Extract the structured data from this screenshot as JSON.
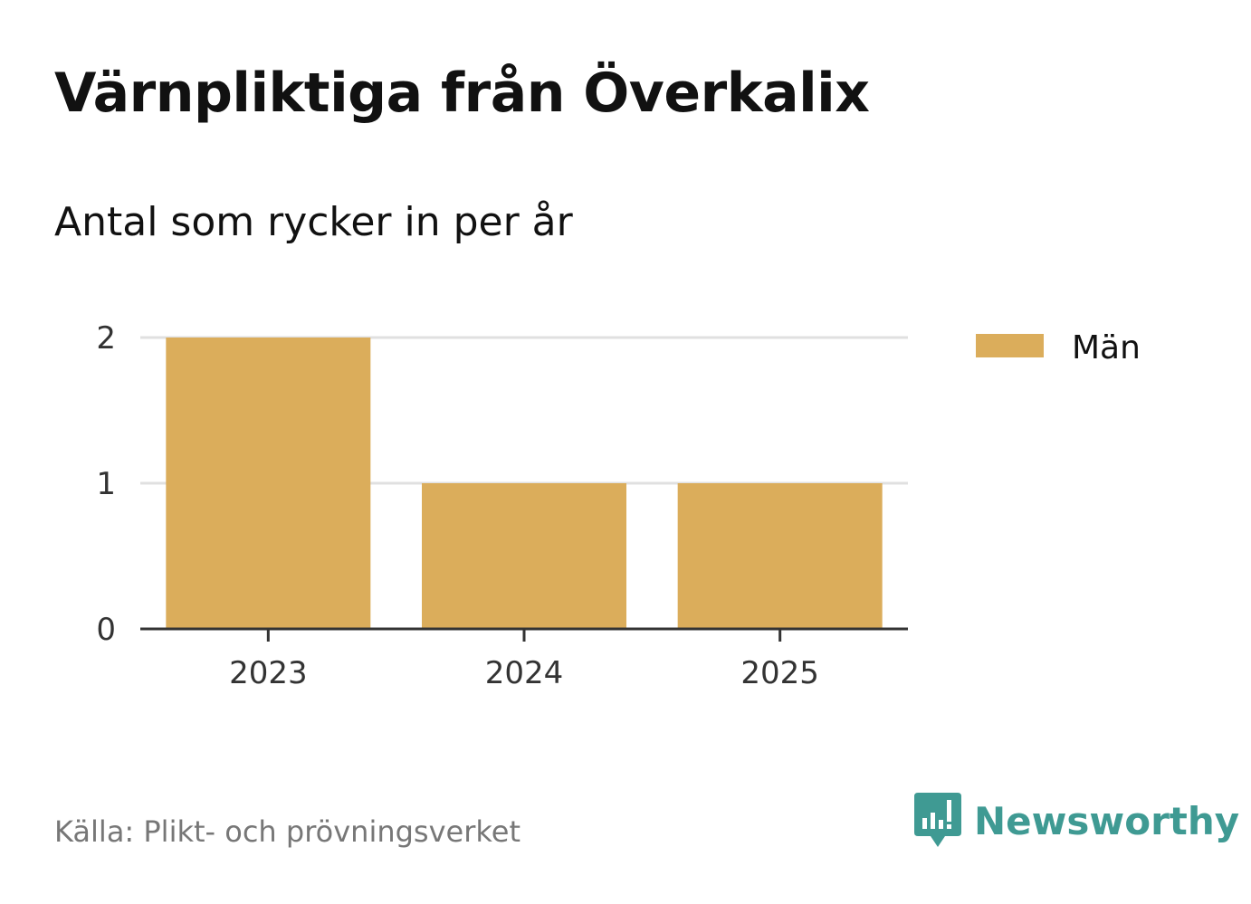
{
  "header": {
    "title": "Värnpliktiga från Överkalix",
    "subtitle": "Antal som rycker in per år"
  },
  "footer": {
    "source": "Källa: Plikt- och prövningsverket",
    "brand": "Newsworthy"
  },
  "colors": {
    "bar": "#dbad5b",
    "grid": "#e0e0e0",
    "axis": "#333333",
    "brand": "#3f9a93"
  },
  "chart_data": {
    "type": "bar",
    "title": "Värnpliktiga från Överkalix",
    "subtitle": "Antal som rycker in per år",
    "categories": [
      "2023",
      "2024",
      "2025"
    ],
    "series": [
      {
        "name": "Män",
        "values": [
          2,
          1,
          1
        ]
      }
    ],
    "xlabel": "",
    "ylabel": "",
    "ylim": [
      0,
      2
    ],
    "yticks": [
      "0",
      "1",
      "2"
    ],
    "grid": true,
    "legend_position": "top-right"
  }
}
